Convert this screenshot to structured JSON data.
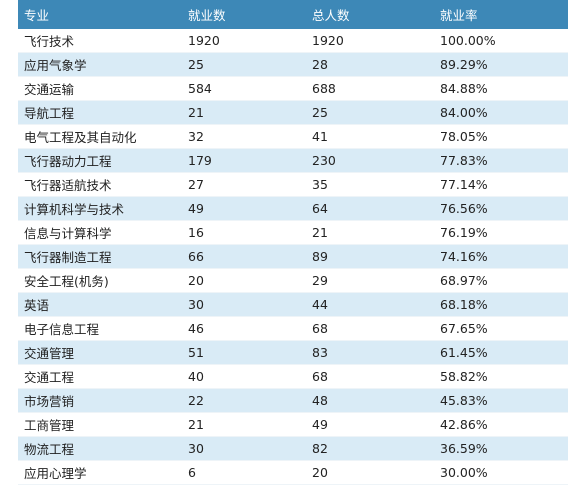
{
  "table": {
    "headers": [
      "专业",
      "就业数",
      "总人数",
      "就业率"
    ],
    "rows": [
      [
        "飞行技术",
        "1920",
        "1920",
        "100.00%"
      ],
      [
        "应用气象学",
        "25",
        "28",
        "89.29%"
      ],
      [
        "交通运输",
        "584",
        "688",
        "84.88%"
      ],
      [
        "导航工程",
        "21",
        "25",
        "84.00%"
      ],
      [
        "电气工程及其自动化",
        "32",
        "41",
        "78.05%"
      ],
      [
        "飞行器动力工程",
        "179",
        "230",
        "77.83%"
      ],
      [
        "飞行器适航技术",
        "27",
        "35",
        "77.14%"
      ],
      [
        "计算机科学与技术",
        "49",
        "64",
        "76.56%"
      ],
      [
        "信息与计算科学",
        "16",
        "21",
        "76.19%"
      ],
      [
        "飞行器制造工程",
        "66",
        "89",
        "74.16%"
      ],
      [
        "安全工程(机务)",
        "20",
        "29",
        "68.97%"
      ],
      [
        "英语",
        "30",
        "44",
        "68.18%"
      ],
      [
        "电子信息工程",
        "46",
        "68",
        "67.65%"
      ],
      [
        "交通管理",
        "51",
        "83",
        "61.45%"
      ],
      [
        "交通工程",
        "40",
        "68",
        "58.82%"
      ],
      [
        "市场营销",
        "22",
        "48",
        "45.83%"
      ],
      [
        "工商管理",
        "21",
        "49",
        "42.86%"
      ],
      [
        "物流工程",
        "30",
        "82",
        "36.59%"
      ],
      [
        "应用心理学",
        "6",
        "20",
        "30.00%"
      ]
    ]
  },
  "colors": {
    "header_bg": "#3d88b7",
    "header_text": "#ffffff",
    "stripe_bg": "#d9ebf6",
    "row_bg": "#ffffff",
    "text": "#222222"
  }
}
